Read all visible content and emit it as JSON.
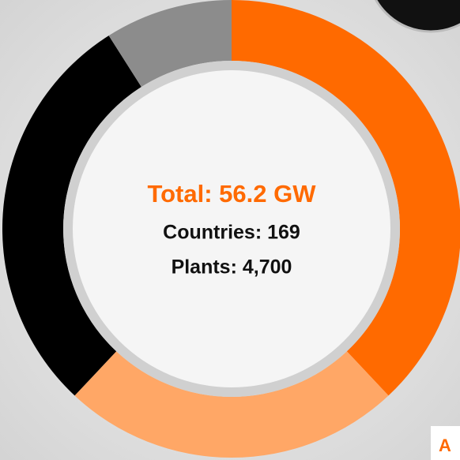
{
  "chart_data": {
    "type": "donut",
    "values": [
      38,
      24,
      29,
      9
    ],
    "colors": [
      "#ff6a00",
      "#ffa766",
      "#000000",
      "#8c8c8c"
    ],
    "center_texts": [
      "Total: 56.2 GW",
      "Countries: 169",
      "Plants: 4,700"
    ]
  },
  "corner_label": "A"
}
